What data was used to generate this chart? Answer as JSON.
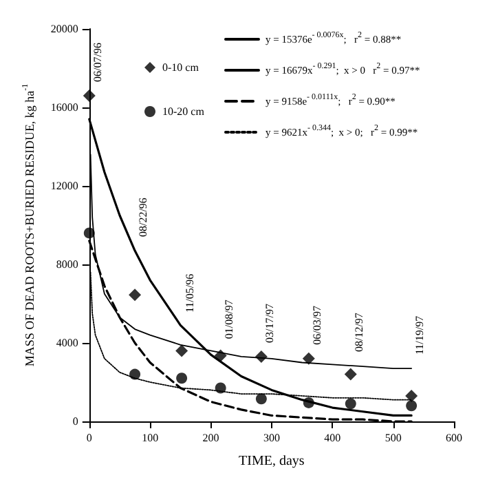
{
  "chart_data": {
    "type": "scatter",
    "xlabel": "TIME, days",
    "ylabel": "MASS OF DEAD ROOTS+BURIED RESIDUE, kg ha$^{-1}$",
    "xlim": [
      0,
      600
    ],
    "xticks": [
      0,
      100,
      200,
      300,
      400,
      500,
      600
    ],
    "ylim": [
      0,
      20000
    ],
    "yticks": [
      0,
      4000,
      8000,
      12000,
      16000,
      20000
    ],
    "grid": false,
    "legend": "top",
    "series": [
      {
        "name": "0-10 cm",
        "marker": "diamond",
        "color": "#000000",
        "x": [
          0,
          75,
          152,
          216,
          283,
          361,
          430,
          530
        ],
        "values": [
          16600,
          6450,
          3600,
          3350,
          3300,
          3200,
          2400,
          1300
        ]
      },
      {
        "name": "10-20 cm",
        "marker": "circle",
        "color": "#000000",
        "x": [
          0,
          75,
          152,
          216,
          283,
          361,
          430,
          530
        ],
        "values": [
          9600,
          2400,
          2200,
          1700,
          1150,
          950,
          900,
          800
        ]
      },
      {
        "name": "y = 15376e$^{- 0.0076x}$;   r$^{2}$ = 0.88**",
        "type": "line",
        "line_style": "solid",
        "marker": "none",
        "color": "#000000",
        "x": [
          0,
          25,
          50,
          75,
          100,
          150,
          200,
          250,
          300,
          350,
          400,
          450,
          500,
          530
        ],
        "values": [
          15400,
          12700,
          10500,
          8700,
          7200,
          4900,
          3400,
          2300,
          1600,
          1100,
          700,
          500,
          300,
          300
        ]
      },
      {
        "name": "y = 16679x$^{- 0.291}$;  x > 0   r$^{2}$ = 0.97**",
        "type": "line",
        "line_style": "solid",
        "marker": "none",
        "color": "#000000",
        "x": [
          2,
          5,
          10,
          25,
          50,
          75,
          100,
          150,
          200,
          250,
          300,
          350,
          400,
          450,
          500,
          530
        ],
        "values": [
          13600,
          10400,
          8500,
          6500,
          5300,
          4700,
          4400,
          3900,
          3600,
          3300,
          3200,
          3000,
          2900,
          2800,
          2700,
          2700
        ]
      },
      {
        "name": "y = 9158e$^{- 0.0111x}$;   r$^{2}$ = 0.90**",
        "type": "line",
        "line_style": "dashed",
        "marker": "none",
        "color": "#000000",
        "x": [
          0,
          25,
          50,
          75,
          100,
          150,
          200,
          250,
          300,
          350,
          400,
          450,
          500,
          530
        ],
        "values": [
          9200,
          6900,
          5300,
          4000,
          3000,
          1700,
          1000,
          600,
          300,
          200,
          100,
          100,
          0,
          0
        ]
      },
      {
        "name": "y = 9621x$^{- 0.344}$;  x > 0;   r$^{2}$ = 0.99**",
        "type": "line",
        "line_style": "dotted",
        "marker": "none",
        "color": "#000000",
        "x": [
          2,
          5,
          10,
          25,
          50,
          75,
          100,
          150,
          200,
          250,
          300,
          350,
          400,
          450,
          500,
          530
        ],
        "values": [
          7600,
          5500,
          4400,
          3200,
          2500,
          2200,
          2000,
          1700,
          1600,
          1400,
          1400,
          1300,
          1200,
          1200,
          1100,
          1100
        ]
      }
    ],
    "annotations": [
      "06/07/96",
      "08/22/96",
      "11/05/96",
      "01/08/97",
      "03/17/97",
      "06/03/97",
      "08/12/97",
      "11/19/97"
    ]
  }
}
